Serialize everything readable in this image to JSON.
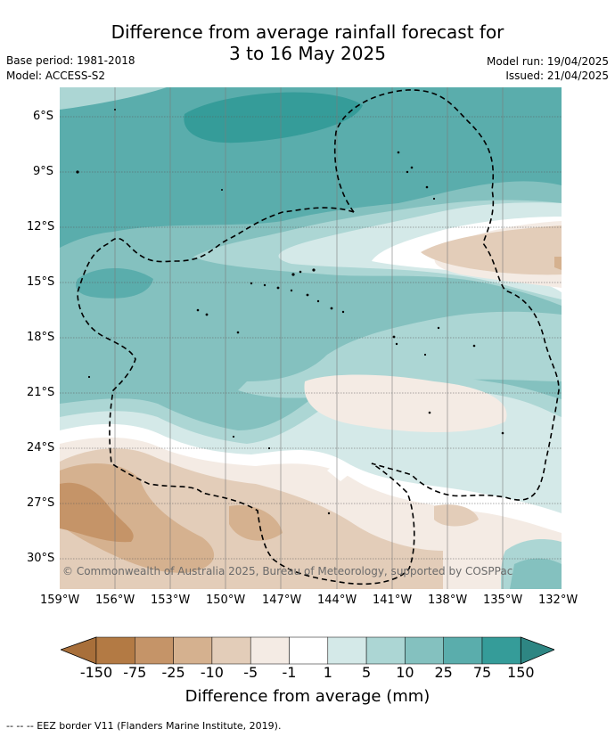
{
  "title_line1": "Difference from average rainfall forecast for",
  "title_line2": "3 to 16 May 2025",
  "base_period": "Base period: 1981-2018",
  "model": "Model: ACCESS-S2",
  "model_run": "Model run: 19/04/2025",
  "issued": "Issued: 21/04/2025",
  "copyright": "© Commonwealth of Australia 2025, Bureau of Meteorology, supported by COSPPac",
  "lat_labels": [
    "6°S",
    "9°S",
    "12°S",
    "15°S",
    "18°S",
    "21°S",
    "24°S",
    "27°S",
    "30°S"
  ],
  "lon_labels": [
    "159°W",
    "156°W",
    "153°W",
    "150°W",
    "147°W",
    "144°W",
    "141°W",
    "138°W",
    "135°W",
    "132°W"
  ],
  "colorbar": {
    "title": "Difference from average (mm)",
    "ticks": [
      "-150",
      "-75",
      "-25",
      "-10",
      "-5",
      "-1",
      "1",
      "5",
      "10",
      "25",
      "75",
      "150"
    ],
    "colors": [
      "#a86f3a",
      "#b37a44",
      "#c59468",
      "#d5b18f",
      "#e3cdb9",
      "#f4ebe4",
      "#ffffff",
      "#d4e9e8",
      "#acd6d4",
      "#84c1bf",
      "#5aadac",
      "#359c99",
      "#2e8683"
    ]
  },
  "footer": "--  --  -- EEZ border V11 (Flanders Marine Institute, 2019)."
}
